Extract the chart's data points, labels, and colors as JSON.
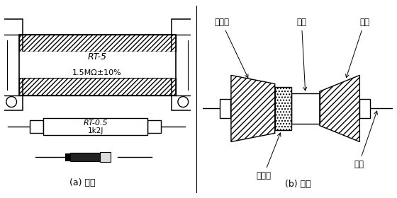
{
  "label_a": "(a) 外形",
  "label_b": "(b) 结构",
  "rt5_text1": "RT-5",
  "rt5_text2": "1.5MΩ±10%",
  "rt05_text1": "RT-0.5",
  "rt05_text2": "1k2J",
  "labels": [
    "保护漆",
    "瓷棒",
    "帽盖",
    "碳膜层",
    "引线"
  ],
  "font_size_label": 8.5,
  "font_size_body": 8,
  "font_size_cap": 8
}
